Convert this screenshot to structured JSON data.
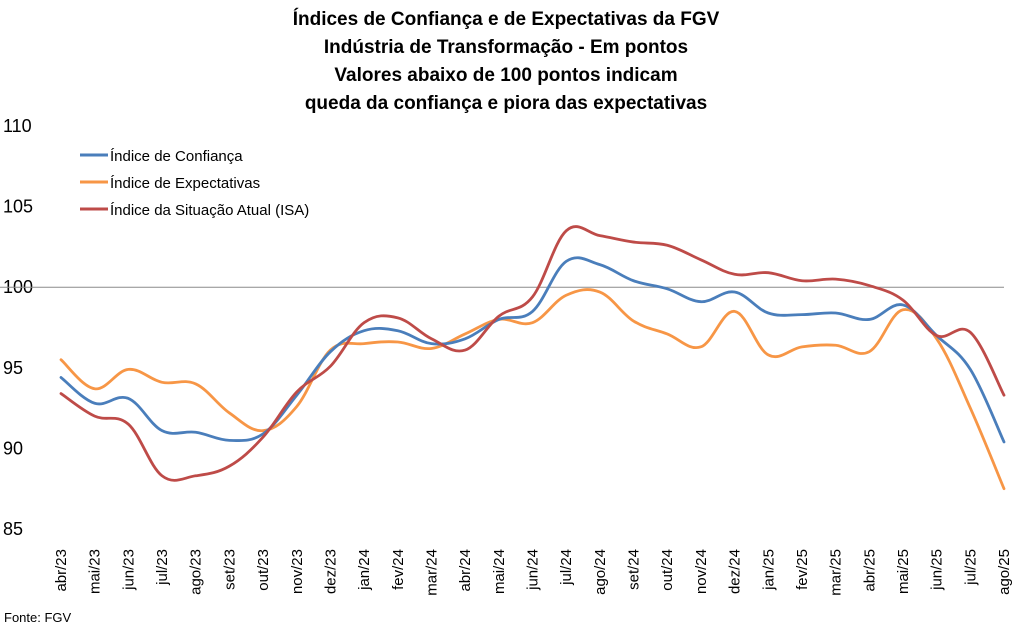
{
  "chart_data": {
    "type": "line",
    "title_lines": [
      "Índices de Confiança e de Expectativas da FGV",
      "Indústria de Transformação - Em pontos",
      "Valores abaixo de 100 pontos indicam",
      "queda da confiança e piora das expectativas"
    ],
    "xlabel": "",
    "ylabel": "",
    "ylim": [
      85,
      110
    ],
    "yticks": [
      "110",
      "105",
      "100",
      "95",
      "90",
      "85"
    ],
    "reference_line": 100,
    "legend_position": "top-left",
    "categories": [
      "abr/23",
      "mai/23",
      "jun/23",
      "jul/23",
      "ago/23",
      "set/23",
      "out/23",
      "nov/23",
      "dez/23",
      "jan/24",
      "fev/24",
      "mar/24",
      "abr/24",
      "mai/24",
      "jun/24",
      "jul/24",
      "ago/24",
      "set/24",
      "out/24",
      "nov/24",
      "dez/24",
      "jan/25",
      "fev/25",
      "mar/25",
      "abr/25",
      "mai/25",
      "jun/25",
      "jul/25",
      "ago/25"
    ],
    "series": [
      {
        "name": "Índice de Confiança",
        "color": "#4a7ebb",
        "values": [
          94.4,
          92.8,
          93.1,
          91.1,
          91.0,
          90.5,
          90.9,
          93.3,
          96.0,
          97.3,
          97.3,
          96.5,
          96.8,
          98.0,
          98.5,
          101.6,
          101.4,
          100.4,
          99.9,
          99.1,
          99.7,
          98.4,
          98.3,
          98.4,
          98.0,
          98.9,
          97.0,
          94.9,
          90.4
        ]
      },
      {
        "name": "Índice de Expectativas",
        "color": "#f79646",
        "values": [
          95.5,
          93.7,
          94.9,
          94.1,
          94.0,
          92.2,
          91.1,
          92.6,
          96.1,
          96.5,
          96.6,
          96.2,
          97.1,
          98.0,
          97.8,
          99.5,
          99.7,
          97.9,
          97.1,
          96.3,
          98.5,
          95.8,
          96.3,
          96.4,
          96.0,
          98.6,
          96.8,
          92.5,
          87.5
        ]
      },
      {
        "name": "Índice da Situação Atual (ISA)",
        "color": "#be4b48",
        "values": [
          93.4,
          92.0,
          91.5,
          88.3,
          88.3,
          88.9,
          90.7,
          93.5,
          95.1,
          97.8,
          98.1,
          96.8,
          96.1,
          98.2,
          99.4,
          103.5,
          103.2,
          102.8,
          102.6,
          101.7,
          100.8,
          100.9,
          100.4,
          100.5,
          100.1,
          99.2,
          97.0,
          97.2,
          93.3
        ]
      }
    ]
  },
  "source": "Fonte: FGV"
}
